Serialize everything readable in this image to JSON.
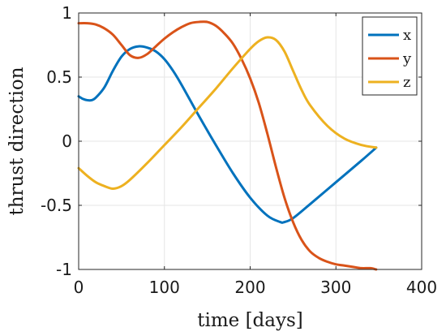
{
  "chart_data": {
    "type": "line",
    "xlabel": "time [days]",
    "ylabel": "thrust direction",
    "xlim": [
      0,
      400
    ],
    "ylim": [
      -1,
      1
    ],
    "xticks": [
      0,
      100,
      200,
      300,
      400
    ],
    "xtick_labels": [
      "0",
      "100",
      "200",
      "300",
      "400"
    ],
    "yticks": [
      -1,
      -0.5,
      0,
      0.5,
      1
    ],
    "ytick_labels": [
      "-1",
      "-0.5",
      "0",
      "0.5",
      "1"
    ],
    "grid": true,
    "legend": "top-right",
    "series": [
      {
        "name": "x",
        "color": "#0072BD",
        "x": [
          0,
          5,
          10,
          15,
          20,
          30,
          40,
          50,
          60,
          70,
          80,
          90,
          100,
          110,
          120,
          140,
          160,
          180,
          200,
          220,
          235,
          240,
          250,
          270,
          300,
          330,
          347
        ],
        "y": [
          0.35,
          0.33,
          0.32,
          0.32,
          0.34,
          0.42,
          0.55,
          0.66,
          0.72,
          0.74,
          0.73,
          0.7,
          0.64,
          0.55,
          0.44,
          0.2,
          -0.03,
          -0.25,
          -0.44,
          -0.58,
          -0.63,
          -0.63,
          -0.6,
          -0.49,
          -0.32,
          -0.15,
          -0.05
        ]
      },
      {
        "name": "y",
        "color": "#D95319",
        "x": [
          0,
          10,
          20,
          30,
          40,
          50,
          60,
          70,
          80,
          90,
          100,
          110,
          120,
          130,
          140,
          150,
          160,
          170,
          180,
          190,
          200,
          210,
          220,
          230,
          240,
          250,
          260,
          270,
          280,
          290,
          300,
          310,
          320,
          330,
          340,
          347
        ],
        "y": [
          0.92,
          0.92,
          0.91,
          0.88,
          0.83,
          0.75,
          0.67,
          0.65,
          0.68,
          0.74,
          0.8,
          0.85,
          0.89,
          0.92,
          0.93,
          0.93,
          0.9,
          0.84,
          0.76,
          0.64,
          0.49,
          0.3,
          0.06,
          -0.2,
          -0.44,
          -0.63,
          -0.77,
          -0.86,
          -0.91,
          -0.94,
          -0.96,
          -0.97,
          -0.98,
          -0.99,
          -0.99,
          -1.0
        ]
      },
      {
        "name": "z",
        "color": "#EDB120",
        "x": [
          0,
          10,
          20,
          30,
          40,
          50,
          60,
          80,
          100,
          120,
          140,
          160,
          180,
          200,
          210,
          220,
          230,
          240,
          250,
          260,
          270,
          290,
          310,
          330,
          347
        ],
        "y": [
          -0.21,
          -0.27,
          -0.32,
          -0.35,
          -0.37,
          -0.35,
          -0.3,
          -0.17,
          -0.03,
          0.11,
          0.26,
          0.41,
          0.57,
          0.72,
          0.78,
          0.81,
          0.79,
          0.7,
          0.55,
          0.4,
          0.28,
          0.12,
          0.02,
          -0.03,
          -0.05
        ]
      }
    ]
  }
}
